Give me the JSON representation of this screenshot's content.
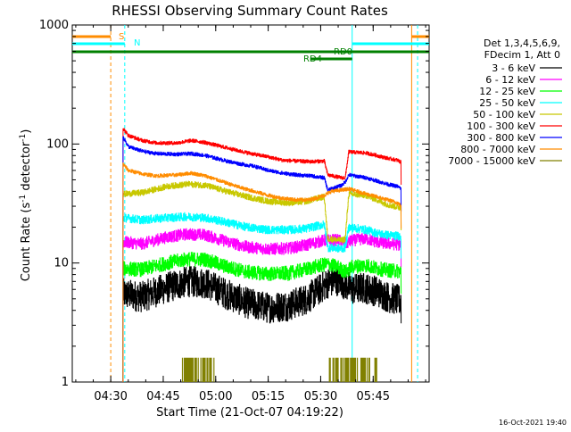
{
  "chart_data": {
    "type": "line",
    "title": "RHESSI Observing Summary Count Rates",
    "xlabel": "Start Time (21-Oct-07 04:19:22)",
    "ylabel_main": "Count Rate (s",
    "ylabel_sup1": "-1",
    "ylabel_mid": " detector",
    "ylabel_sup2": "-1",
    "ylabel_end": ")",
    "y_scale": "log",
    "ylim": [
      1,
      1000
    ],
    "xlim_minutes": [
      0,
      102
    ],
    "x_ticks": [
      {
        "t": 11,
        "label": "04:30"
      },
      {
        "t": 26,
        "label": "04:45"
      },
      {
        "t": 41,
        "label": "05:00"
      },
      {
        "t": 56,
        "label": "05:15"
      },
      {
        "t": 71,
        "label": "05:30"
      },
      {
        "t": 86,
        "label": "05:45"
      }
    ],
    "y_ticks": [
      {
        "v": 1,
        "label": "1"
      },
      {
        "v": 10,
        "label": "10"
      },
      {
        "v": 100,
        "label": "100"
      },
      {
        "v": 1000,
        "label": "1000"
      }
    ],
    "legend_header": [
      "Det 1,3,4,5,6,9,",
      "FDecim 1, Att 0"
    ],
    "legend_position": "right",
    "series": [
      {
        "name": "3 - 6 keV",
        "color": "#000000",
        "start_value": 5.5,
        "points": [
          [
            14.5,
            5.5
          ],
          [
            20,
            5.2
          ],
          [
            27,
            6.2
          ],
          [
            33,
            7.0
          ],
          [
            38,
            6.8
          ],
          [
            44,
            5.5
          ],
          [
            50,
            4.6
          ],
          [
            56,
            4.2
          ],
          [
            62,
            4.4
          ],
          [
            67,
            5.0
          ],
          [
            70,
            5.8
          ],
          [
            73,
            6.8
          ],
          [
            76,
            7.2
          ],
          [
            78,
            6.6
          ],
          [
            80,
            6.0
          ],
          [
            83,
            6.2
          ],
          [
            87,
            5.8
          ],
          [
            90,
            5.2
          ],
          [
            94,
            4.8
          ]
        ]
      },
      {
        "name": "6 - 12 keV",
        "color": "#ff00ff",
        "start_value": 15,
        "points": [
          [
            14.5,
            15
          ],
          [
            20,
            14.5
          ],
          [
            27,
            16.5
          ],
          [
            33,
            17.5
          ],
          [
            38,
            17.2
          ],
          [
            44,
            15.2
          ],
          [
            50,
            13.6
          ],
          [
            56,
            13.1
          ],
          [
            62,
            13.3
          ],
          [
            67,
            14.2
          ],
          [
            70,
            15.0
          ],
          [
            72,
            15.5
          ],
          [
            76,
            15.6
          ],
          [
            78,
            14.5
          ],
          [
            80,
            15.5
          ],
          [
            84,
            16.0
          ],
          [
            87,
            15.0
          ],
          [
            90,
            14.6
          ],
          [
            94,
            14.2
          ]
        ]
      },
      {
        "name": "12 - 25 keV",
        "color": "#00ff00",
        "start_value": 9,
        "points": [
          [
            14.5,
            9.0
          ],
          [
            20,
            8.8
          ],
          [
            27,
            10.0
          ],
          [
            33,
            10.8
          ],
          [
            38,
            10.7
          ],
          [
            44,
            9.3
          ],
          [
            50,
            8.4
          ],
          [
            56,
            8.1
          ],
          [
            62,
            8.2
          ],
          [
            67,
            8.9
          ],
          [
            70,
            9.4
          ],
          [
            73,
            9.8
          ],
          [
            76,
            9.2
          ],
          [
            78,
            8.4
          ],
          [
            80,
            9.3
          ],
          [
            84,
            9.6
          ],
          [
            87,
            9.0
          ],
          [
            90,
            8.7
          ],
          [
            94,
            8.5
          ]
        ]
      },
      {
        "name": "25 - 50 keV",
        "color": "#00ffff",
        "start_value": 24,
        "points": [
          [
            14.5,
            24
          ],
          [
            20,
            23
          ],
          [
            27,
            24
          ],
          [
            33,
            24.5
          ],
          [
            38,
            24
          ],
          [
            44,
            22
          ],
          [
            50,
            20
          ],
          [
            56,
            19
          ],
          [
            62,
            19
          ],
          [
            67,
            19.5
          ],
          [
            70,
            20.5
          ],
          [
            72,
            21
          ],
          [
            73,
            13.5
          ],
          [
            77,
            13.2
          ],
          [
            78,
            13.5
          ],
          [
            79,
            20
          ],
          [
            84,
            19
          ],
          [
            87,
            17.8
          ],
          [
            90,
            17.2
          ],
          [
            94,
            16.8
          ]
        ]
      },
      {
        "name": "50 - 100 keV",
        "color": "#c8c800",
        "start_value": 38,
        "points": [
          [
            14.5,
            38
          ],
          [
            20,
            39
          ],
          [
            27,
            44
          ],
          [
            33,
            46
          ],
          [
            38,
            45
          ],
          [
            44,
            40
          ],
          [
            50,
            36
          ],
          [
            56,
            33
          ],
          [
            62,
            32
          ],
          [
            67,
            33
          ],
          [
            70,
            35
          ],
          [
            72,
            36
          ],
          [
            73,
            16
          ],
          [
            77,
            15.5
          ],
          [
            78,
            16
          ],
          [
            79,
            38
          ],
          [
            84,
            37
          ],
          [
            87,
            34
          ],
          [
            90,
            31
          ],
          [
            94,
            29
          ]
        ]
      },
      {
        "name": "100 - 300 keV",
        "color": "#ff0000",
        "start_value": 135,
        "points": [
          [
            14.5,
            135
          ],
          [
            16,
            118
          ],
          [
            20,
            107
          ],
          [
            24,
            102
          ],
          [
            30,
            102
          ],
          [
            34,
            107
          ],
          [
            38,
            103
          ],
          [
            44,
            93
          ],
          [
            48,
            87
          ],
          [
            52,
            82
          ],
          [
            56,
            78
          ],
          [
            60,
            73
          ],
          [
            64,
            72
          ],
          [
            68,
            71
          ],
          [
            72,
            72
          ],
          [
            73,
            55
          ],
          [
            77,
            52
          ],
          [
            78,
            52
          ],
          [
            79,
            86
          ],
          [
            84,
            84
          ],
          [
            87,
            80
          ],
          [
            90,
            76
          ],
          [
            93,
            73
          ],
          [
            94,
            70
          ]
        ]
      },
      {
        "name": "300 - 800 keV",
        "color": "#0000ff",
        "start_value": 115,
        "points": [
          [
            14.5,
            115
          ],
          [
            16,
            95
          ],
          [
            20,
            87
          ],
          [
            24,
            83
          ],
          [
            30,
            82
          ],
          [
            34,
            83
          ],
          [
            38,
            80
          ],
          [
            44,
            72
          ],
          [
            48,
            68
          ],
          [
            52,
            65
          ],
          [
            56,
            60
          ],
          [
            60,
            57
          ],
          [
            64,
            55
          ],
          [
            68,
            54
          ],
          [
            72,
            52
          ],
          [
            73,
            41
          ],
          [
            77,
            45
          ],
          [
            78,
            48
          ],
          [
            79,
            55
          ],
          [
            84,
            52
          ],
          [
            87,
            49
          ],
          [
            90,
            46
          ],
          [
            93,
            44
          ],
          [
            94,
            42
          ]
        ]
      },
      {
        "name": "800 - 7000 keV",
        "color": "#ff8c00",
        "start_value": 68,
        "points": [
          [
            14.5,
            68
          ],
          [
            16,
            60
          ],
          [
            20,
            56
          ],
          [
            24,
            54
          ],
          [
            30,
            55
          ],
          [
            34,
            57
          ],
          [
            38,
            54
          ],
          [
            44,
            47
          ],
          [
            48,
            43
          ],
          [
            52,
            40
          ],
          [
            56,
            37
          ],
          [
            60,
            35
          ],
          [
            64,
            34
          ],
          [
            68,
            34
          ],
          [
            72,
            37
          ],
          [
            74,
            40
          ],
          [
            77,
            41
          ],
          [
            79,
            42
          ],
          [
            84,
            38
          ],
          [
            87,
            36
          ],
          [
            90,
            34
          ],
          [
            93,
            32
          ],
          [
            94,
            30
          ]
        ]
      },
      {
        "name": "7000 - 15000 keV",
        "color": "#808000",
        "start_value": 1.6,
        "bursts": [
          [
            31,
            41
          ],
          [
            73,
            87
          ]
        ]
      }
    ],
    "annotations": {
      "s_label": "S",
      "n_label": "N",
      "rd0_label": "RD0",
      "rd4_label": "RD4",
      "s_color": "#ff8c00",
      "n_color": "#00ffff",
      "rd_color": "#008000"
    },
    "markers": [
      {
        "t": 11,
        "color": "#ff8c00",
        "style": "dashed"
      },
      {
        "t": 15,
        "color": "#00ffff",
        "style": "dashed"
      },
      {
        "t": 80,
        "color": "#00ffff",
        "style": "solid"
      },
      {
        "t": 97,
        "color": "#ff8c00",
        "style": "solid"
      },
      {
        "t": 98.7,
        "color": "#00ffff",
        "style": "dashed"
      }
    ],
    "bars": {
      "s_bar": [
        [
          0,
          11
        ],
        [
          97,
          102
        ]
      ],
      "n_bar": [
        [
          0,
          15
        ],
        [
          80,
          102
        ]
      ],
      "rd0_bar": [
        [
          0,
          102
        ]
      ],
      "rd4_bar": [
        [
          68,
          80
        ]
      ]
    },
    "footer_timestamp": "16-Oct-2021 19:40"
  }
}
